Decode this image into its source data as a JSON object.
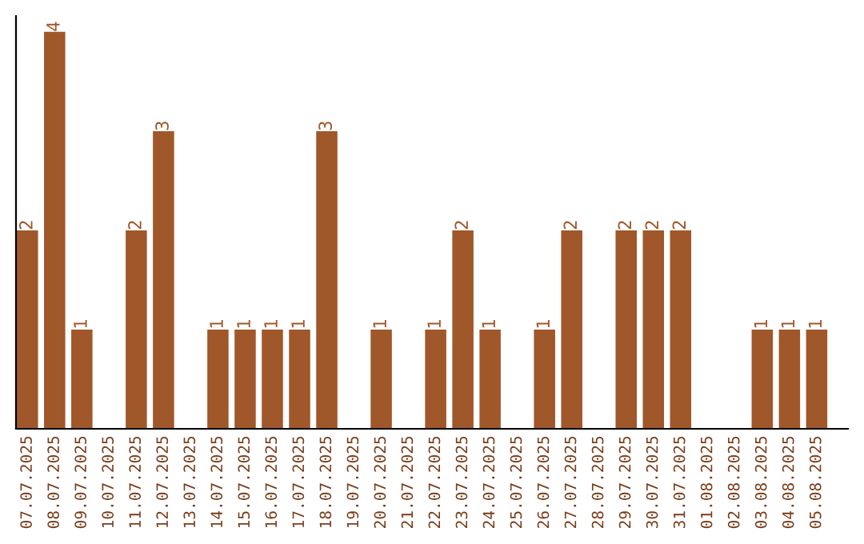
{
  "chart_data": {
    "type": "bar",
    "categories": [
      "07.07.2025",
      "08.07.2025",
      "09.07.2025",
      "10.07.2025",
      "11.07.2025",
      "12.07.2025",
      "13.07.2025",
      "14.07.2025",
      "15.07.2025",
      "16.07.2025",
      "17.07.2025",
      "18.07.2025",
      "19.07.2025",
      "20.07.2025",
      "21.07.2025",
      "22.07.2025",
      "23.07.2025",
      "24.07.2025",
      "25.07.2025",
      "26.07.2025",
      "27.07.2025",
      "28.07.2025",
      "29.07.2025",
      "30.07.2025",
      "31.07.2025",
      "01.08.2025",
      "02.08.2025",
      "03.08.2025",
      "04.08.2025",
      "05.08.2025"
    ],
    "values": [
      2,
      4,
      1,
      0,
      2,
      3,
      0,
      1,
      1,
      1,
      1,
      3,
      0,
      1,
      0,
      1,
      2,
      1,
      0,
      1,
      2,
      0,
      2,
      2,
      2,
      0,
      0,
      1,
      1,
      1
    ],
    "value_labels": [
      "2",
      "4",
      "1",
      null,
      "2",
      "3",
      null,
      "1",
      "1",
      "1",
      "1",
      "3",
      null,
      "1",
      null,
      "1",
      "2",
      "1",
      null,
      "1",
      "2",
      null,
      "2",
      "2",
      "2",
      null,
      null,
      "1",
      "1",
      "1"
    ],
    "color": "#a0572a",
    "tick_labels": "x",
    "grid": false,
    "legend": false
  }
}
